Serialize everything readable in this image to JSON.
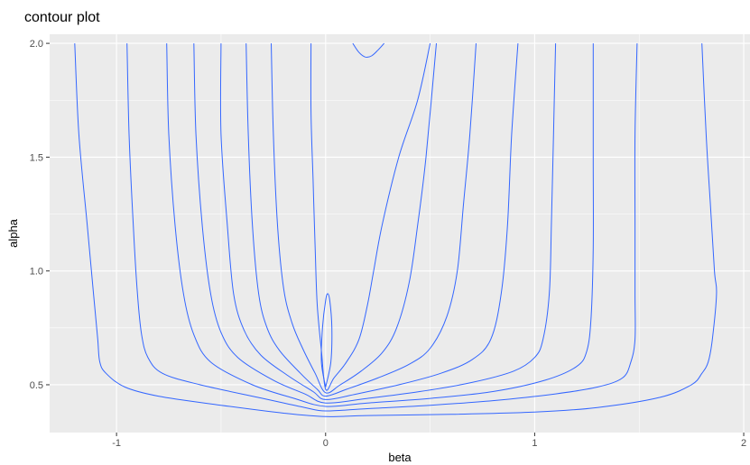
{
  "chart_data": {
    "type": "line",
    "title": "contour plot",
    "xlabel": "beta",
    "ylabel": "alpha",
    "xlim": [
      -1.32,
      2.03
    ],
    "ylim": [
      0.29,
      2.04
    ],
    "x_ticks": [
      {
        "value": -1,
        "label": "-1"
      },
      {
        "value": 0,
        "label": "0"
      },
      {
        "value": 1,
        "label": "1"
      },
      {
        "value": 2,
        "label": "2"
      }
    ],
    "y_ticks": [
      {
        "value": 0.5,
        "label": "0.5"
      },
      {
        "value": 1.0,
        "label": "1.0"
      },
      {
        "value": 1.5,
        "label": "1.5"
      },
      {
        "value": 2.0,
        "label": "2.0"
      }
    ],
    "grid": true,
    "panel_background": "#ebebeb",
    "grid_color": "#ffffff",
    "line_color": "#3366ff",
    "series": [
      {
        "points": [
          [
            -1.2,
            2.0
          ],
          [
            -1.18,
            1.6
          ],
          [
            -1.14,
            1.2
          ],
          [
            -1.11,
            0.9
          ],
          [
            -1.09,
            0.7
          ],
          [
            -1.08,
            0.6
          ],
          [
            -1.05,
            0.55
          ],
          [
            -0.96,
            0.49
          ],
          [
            -0.8,
            0.45
          ],
          [
            -0.5,
            0.41
          ],
          [
            -0.2,
            0.375
          ],
          [
            0,
            0.36
          ],
          [
            0.2,
            0.365
          ],
          [
            0.6,
            0.37
          ],
          [
            1.0,
            0.38
          ],
          [
            1.3,
            0.4
          ],
          [
            1.6,
            0.445
          ],
          [
            1.75,
            0.5
          ],
          [
            1.8,
            0.55
          ],
          [
            1.83,
            0.6
          ],
          [
            1.85,
            0.7
          ],
          [
            1.87,
            0.9
          ],
          [
            1.86,
            1.0
          ],
          [
            1.84,
            1.3
          ],
          [
            1.82,
            1.6
          ],
          [
            1.8,
            2.0
          ]
        ]
      },
      {
        "points": [
          [
            -0.95,
            2.0
          ],
          [
            -0.94,
            1.6
          ],
          [
            -0.92,
            1.2
          ],
          [
            -0.9,
            0.9
          ],
          [
            -0.88,
            0.72
          ],
          [
            -0.85,
            0.62
          ],
          [
            -0.78,
            0.55
          ],
          [
            -0.6,
            0.5
          ],
          [
            -0.3,
            0.44
          ],
          [
            -0.1,
            0.4
          ],
          [
            0,
            0.385
          ],
          [
            0.2,
            0.395
          ],
          [
            0.5,
            0.41
          ],
          [
            0.8,
            0.43
          ],
          [
            1.1,
            0.46
          ],
          [
            1.3,
            0.49
          ],
          [
            1.42,
            0.53
          ],
          [
            1.46,
            0.6
          ],
          [
            1.48,
            0.7
          ],
          [
            1.48,
            0.9
          ],
          [
            1.48,
            1.2
          ],
          [
            1.48,
            1.6
          ],
          [
            1.49,
            2.0
          ]
        ]
      },
      {
        "points": [
          [
            -0.76,
            2.0
          ],
          [
            -0.75,
            1.6
          ],
          [
            -0.72,
            1.2
          ],
          [
            -0.68,
            0.9
          ],
          [
            -0.63,
            0.72
          ],
          [
            -0.55,
            0.6
          ],
          [
            -0.35,
            0.5
          ],
          [
            -0.15,
            0.44
          ],
          [
            0,
            0.405
          ],
          [
            0.2,
            0.42
          ],
          [
            0.5,
            0.44
          ],
          [
            0.8,
            0.47
          ],
          [
            1.05,
            0.52
          ],
          [
            1.2,
            0.58
          ],
          [
            1.25,
            0.65
          ],
          [
            1.27,
            0.8
          ],
          [
            1.28,
            1.1
          ],
          [
            1.28,
            1.5
          ],
          [
            1.28,
            2.0
          ]
        ]
      },
      {
        "points": [
          [
            -0.63,
            2.0
          ],
          [
            -0.62,
            1.6
          ],
          [
            -0.59,
            1.2
          ],
          [
            -0.55,
            0.9
          ],
          [
            -0.5,
            0.73
          ],
          [
            -0.42,
            0.62
          ],
          [
            -0.25,
            0.52
          ],
          [
            -0.1,
            0.46
          ],
          [
            0,
            0.42
          ],
          [
            0.2,
            0.44
          ],
          [
            0.45,
            0.47
          ],
          [
            0.7,
            0.51
          ],
          [
            0.9,
            0.56
          ],
          [
            1.0,
            0.62
          ],
          [
            1.04,
            0.7
          ],
          [
            1.07,
            0.9
          ],
          [
            1.08,
            1.2
          ],
          [
            1.09,
            1.6
          ],
          [
            1.1,
            2.0
          ]
        ]
      },
      {
        "points": [
          [
            -0.5,
            2.0
          ],
          [
            -0.5,
            1.6
          ],
          [
            -0.47,
            1.2
          ],
          [
            -0.44,
            0.9
          ],
          [
            -0.39,
            0.74
          ],
          [
            -0.31,
            0.63
          ],
          [
            -0.18,
            0.54
          ],
          [
            -0.06,
            0.47
          ],
          [
            0,
            0.435
          ],
          [
            0.15,
            0.46
          ],
          [
            0.35,
            0.5
          ],
          [
            0.55,
            0.55
          ],
          [
            0.7,
            0.61
          ],
          [
            0.79,
            0.7
          ],
          [
            0.84,
            0.9
          ],
          [
            0.87,
            1.2
          ],
          [
            0.89,
            1.6
          ],
          [
            0.92,
            2.0
          ]
        ]
      },
      {
        "points": [
          [
            -0.38,
            2.0
          ],
          [
            -0.37,
            1.6
          ],
          [
            -0.35,
            1.2
          ],
          [
            -0.32,
            0.9
          ],
          [
            -0.28,
            0.75
          ],
          [
            -0.22,
            0.65
          ],
          [
            -0.12,
            0.55
          ],
          [
            -0.04,
            0.48
          ],
          [
            0,
            0.45
          ],
          [
            0.1,
            0.48
          ],
          [
            0.25,
            0.53
          ],
          [
            0.4,
            0.59
          ],
          [
            0.5,
            0.66
          ],
          [
            0.58,
            0.8
          ],
          [
            0.63,
            1.0
          ],
          [
            0.66,
            1.3
          ],
          [
            0.69,
            1.6
          ],
          [
            0.72,
            2.0
          ]
        ]
      },
      {
        "points": [
          [
            -0.26,
            2.0
          ],
          [
            -0.25,
            1.6
          ],
          [
            -0.23,
            1.2
          ],
          [
            -0.2,
            0.92
          ],
          [
            -0.16,
            0.77
          ],
          [
            -0.11,
            0.66
          ],
          [
            -0.05,
            0.55
          ],
          [
            0,
            0.465
          ],
          [
            0.07,
            0.5
          ],
          [
            0.17,
            0.56
          ],
          [
            0.27,
            0.64
          ],
          [
            0.34,
            0.75
          ],
          [
            0.4,
            0.95
          ],
          [
            0.44,
            1.2
          ],
          [
            0.48,
            1.5
          ],
          [
            0.53,
            2.0
          ]
        ]
      },
      {
        "points": [
          [
            -0.07,
            2.0
          ],
          [
            -0.07,
            1.7
          ],
          [
            -0.06,
            1.4
          ],
          [
            -0.05,
            1.1
          ],
          [
            -0.04,
            0.85
          ],
          [
            -0.02,
            0.65
          ],
          [
            0,
            0.48
          ],
          [
            0.04,
            0.53
          ],
          [
            0.1,
            0.6
          ],
          [
            0.16,
            0.7
          ],
          [
            0.2,
            0.85
          ],
          [
            0.23,
            1.0
          ],
          [
            0.27,
            1.2
          ],
          [
            0.35,
            1.5
          ],
          [
            0.44,
            1.75
          ],
          [
            0.5,
            2.0
          ]
        ]
      },
      {
        "points": [
          [
            0.0,
            0.49
          ],
          [
            -0.02,
            0.6
          ],
          [
            -0.015,
            0.75
          ],
          [
            0.0,
            0.87
          ],
          [
            0.01,
            0.9
          ],
          [
            0.02,
            0.87
          ],
          [
            0.03,
            0.75
          ],
          [
            0.025,
            0.6
          ],
          [
            0.0,
            0.49
          ]
        ]
      },
      {
        "points": [
          [
            0.13,
            2.0
          ],
          [
            0.16,
            1.96
          ],
          [
            0.19,
            1.94
          ],
          [
            0.22,
            1.945
          ],
          [
            0.25,
            1.97
          ],
          [
            0.28,
            2.0
          ]
        ]
      }
    ]
  }
}
